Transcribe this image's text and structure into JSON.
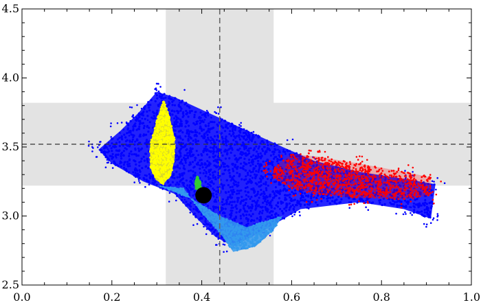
{
  "chart_data": {
    "type": "scatter",
    "title": "",
    "xlabel": "",
    "ylabel": "",
    "xlim": [
      0.0,
      1.0
    ],
    "ylim": [
      2.5,
      4.5
    ],
    "xticks": [
      "0.0",
      "0.2",
      "0.4",
      "0.6",
      "0.8",
      "1.0"
    ],
    "yticks": [
      "2.5",
      "3.0",
      "3.5",
      "4.0",
      "4.5"
    ],
    "grid": false,
    "shaded_bands": [
      {
        "axis": "x",
        "from": 0.32,
        "to": 0.56,
        "color": "#e3e3e3"
      },
      {
        "axis": "y",
        "from": 3.22,
        "to": 3.82,
        "color": "#e3e3e3"
      }
    ],
    "reference_lines": [
      {
        "axis": "x",
        "value": 0.44,
        "style": "dashed",
        "color": "#666666"
      },
      {
        "axis": "y",
        "value": 3.52,
        "style": "dashed",
        "color": "#333333"
      }
    ],
    "series": [
      {
        "color": "#0000ff",
        "region_outline": [
          [
            0.17,
            3.48
          ],
          [
            0.22,
            3.62
          ],
          [
            0.26,
            3.75
          ],
          [
            0.3,
            3.9
          ],
          [
            0.34,
            3.86
          ],
          [
            0.42,
            3.74
          ],
          [
            0.5,
            3.62
          ],
          [
            0.58,
            3.5
          ],
          [
            0.65,
            3.4
          ],
          [
            0.75,
            3.32
          ],
          [
            0.85,
            3.27
          ],
          [
            0.92,
            3.23
          ],
          [
            0.91,
            2.98
          ],
          [
            0.85,
            3.05
          ],
          [
            0.75,
            3.1
          ],
          [
            0.62,
            3.05
          ],
          [
            0.54,
            2.9
          ],
          [
            0.47,
            2.78
          ],
          [
            0.43,
            2.85
          ],
          [
            0.39,
            2.98
          ],
          [
            0.34,
            3.16
          ],
          [
            0.27,
            3.25
          ],
          [
            0.2,
            3.38
          ]
        ]
      },
      {
        "color": "#3399ee",
        "region_outline": [
          [
            0.3,
            3.22
          ],
          [
            0.36,
            3.2
          ],
          [
            0.4,
            3.02
          ],
          [
            0.44,
            2.88
          ],
          [
            0.47,
            2.74
          ],
          [
            0.52,
            2.78
          ],
          [
            0.56,
            2.9
          ],
          [
            0.58,
            3.0
          ],
          [
            0.5,
            2.92
          ],
          [
            0.44,
            3.0
          ],
          [
            0.38,
            3.12
          ],
          [
            0.32,
            3.2
          ]
        ]
      },
      {
        "color": "#ff0000",
        "region_outline": [
          [
            0.56,
            3.35
          ],
          [
            0.6,
            3.45
          ],
          [
            0.66,
            3.43
          ],
          [
            0.75,
            3.38
          ],
          [
            0.85,
            3.32
          ],
          [
            0.91,
            3.28
          ],
          [
            0.91,
            3.15
          ],
          [
            0.85,
            3.12
          ],
          [
            0.75,
            3.13
          ],
          [
            0.65,
            3.16
          ],
          [
            0.6,
            3.2
          ],
          [
            0.56,
            3.28
          ]
        ]
      },
      {
        "color": "#ffff00",
        "region_outline": [
          [
            0.285,
            3.52
          ],
          [
            0.305,
            3.75
          ],
          [
            0.315,
            3.84
          ],
          [
            0.327,
            3.74
          ],
          [
            0.34,
            3.56
          ],
          [
            0.34,
            3.42
          ],
          [
            0.332,
            3.3
          ],
          [
            0.315,
            3.23
          ],
          [
            0.298,
            3.26
          ],
          [
            0.285,
            3.36
          ]
        ]
      },
      {
        "color": "#33cc33",
        "region_outline": [
          [
            0.385,
            3.26
          ],
          [
            0.39,
            3.29
          ],
          [
            0.397,
            3.25
          ],
          [
            0.4,
            3.2
          ],
          [
            0.393,
            3.18
          ],
          [
            0.385,
            3.2
          ]
        ]
      }
    ],
    "markers": [
      {
        "x": 0.404,
        "y": 3.15,
        "color": "#000000",
        "shape": "circle"
      }
    ]
  }
}
